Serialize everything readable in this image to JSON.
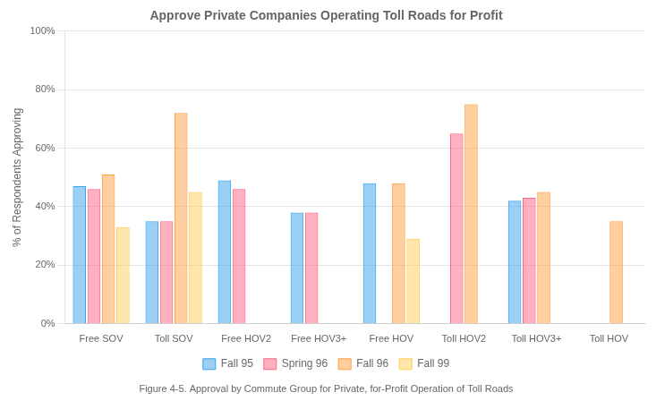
{
  "chart_data": {
    "type": "bar",
    "title": "Approve Private Companies Operating Toll Roads for Profit",
    "caption": "Figure 4-5. Approval by Commute Group for Private, for-Profit Operation of Toll Roads",
    "y_label": "% of Respondents Approving",
    "categories": [
      "Free SOV",
      "Toll SOV",
      "Free HOV2",
      "Free HOV3+",
      "Free HOV",
      "Toll HOV2",
      "Toll HOV3+",
      "Toll HOV"
    ],
    "series": [
      {
        "name": "Fall 95",
        "values": [
          47,
          35,
          49,
          38,
          48,
          null,
          42,
          null
        ]
      },
      {
        "name": "Spring 96",
        "values": [
          46,
          35,
          46,
          38,
          null,
          65,
          43,
          null
        ]
      },
      {
        "name": "Fall 96",
        "values": [
          51,
          72,
          null,
          null,
          48,
          75,
          45,
          35
        ]
      },
      {
        "name": "Fall 99",
        "values": [
          33,
          45,
          null,
          null,
          29,
          null,
          null,
          null
        ]
      }
    ],
    "ylim": [
      0,
      100
    ],
    "yticks": [
      {
        "value": 0,
        "label": "0%"
      },
      {
        "value": 20,
        "label": "20%"
      },
      {
        "value": 40,
        "label": "40%"
      },
      {
        "value": 60,
        "label": "60%"
      },
      {
        "value": 80,
        "label": "80%"
      },
      {
        "value": 100,
        "label": "100%"
      }
    ],
    "grid": true,
    "legend": "bottom"
  }
}
